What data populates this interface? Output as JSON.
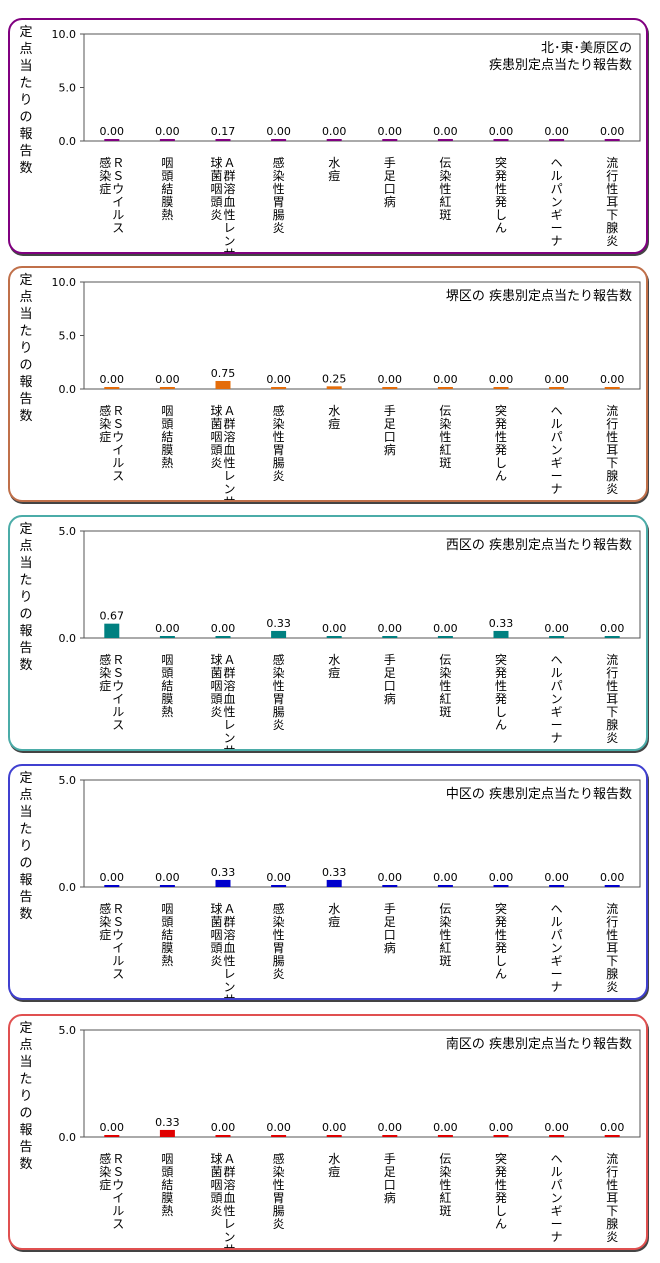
{
  "y_axis_label": "定点当たりの報告数",
  "categories": [
    [
      "Ｒ",
      "Ｓ",
      "ウ",
      "イ",
      "ル",
      "ス",
      "\n",
      "感",
      "染",
      "症"
    ],
    [
      "咽",
      "頭",
      "結",
      "膜",
      "熱"
    ],
    [
      "Ａ",
      "群",
      "溶",
      "血",
      "性",
      "レ",
      "ン",
      "サ",
      "\n",
      "球",
      "菌",
      "咽",
      "頭",
      "炎"
    ],
    [
      "感",
      "染",
      "性",
      "胃",
      "腸",
      "炎"
    ],
    [
      "水",
      "痘"
    ],
    [
      "手",
      "足",
      "口",
      "病"
    ],
    [
      "伝",
      "染",
      "性",
      "紅",
      "斑"
    ],
    [
      "突",
      "発",
      "性",
      "発",
      "し",
      "ん"
    ],
    [
      "ヘ",
      "ル",
      "パ",
      "ン",
      "ギ",
      "ー",
      "ナ"
    ],
    [
      "流",
      "行",
      "性",
      "耳",
      "下",
      "腺",
      "炎"
    ]
  ],
  "chart_data": [
    {
      "type": "bar",
      "title": [
        "北･東･美原区の",
        "疾患別定点当たり報告数"
      ],
      "ylabel": "定点当たりの報告数",
      "ylim": [
        0,
        10
      ],
      "yticks": [
        "0.0",
        "5.0",
        "10.0"
      ],
      "values": [
        0.0,
        0.0,
        0.17,
        0.0,
        0.0,
        0.0,
        0.0,
        0.0,
        0.0,
        0.0
      ],
      "value_labels": [
        "0.00",
        "0.00",
        "0.17",
        "0.00",
        "0.00",
        "0.00",
        "0.00",
        "0.00",
        "0.00",
        "0.00"
      ],
      "bar_color": "#800080",
      "border_color": "#800080"
    },
    {
      "type": "bar",
      "title": [
        "堺区の 疾患別定点当たり報告数"
      ],
      "ylabel": "定点当たりの報告数",
      "ylim": [
        0,
        10
      ],
      "yticks": [
        "0.0",
        "5.0",
        "10.0"
      ],
      "values": [
        0.0,
        0.0,
        0.75,
        0.0,
        0.25,
        0.0,
        0.0,
        0.0,
        0.0,
        0.0
      ],
      "value_labels": [
        "0.00",
        "0.00",
        "0.75",
        "0.00",
        "0.25",
        "0.00",
        "0.00",
        "0.00",
        "0.00",
        "0.00"
      ],
      "bar_color": "#E46C0A",
      "border_color": "#C0704A"
    },
    {
      "type": "bar",
      "title": [
        "西区の 疾患別定点当たり報告数"
      ],
      "ylabel": "定点当たりの報告数",
      "ylim": [
        0,
        5
      ],
      "yticks": [
        "0.0",
        "5.0"
      ],
      "values": [
        0.67,
        0.0,
        0.0,
        0.33,
        0.0,
        0.0,
        0.0,
        0.33,
        0.0,
        0.0
      ],
      "value_labels": [
        "0.67",
        "0.00",
        "0.00",
        "0.33",
        "0.00",
        "0.00",
        "0.00",
        "0.33",
        "0.00",
        "0.00"
      ],
      "bar_color": "#008080",
      "border_color": "#4BACA8"
    },
    {
      "type": "bar",
      "title": [
        "中区の 疾患別定点当たり報告数"
      ],
      "ylabel": "定点当たりの報告数",
      "ylim": [
        0,
        5
      ],
      "yticks": [
        "0.0",
        "5.0"
      ],
      "values": [
        0.0,
        0.0,
        0.33,
        0.0,
        0.33,
        0.0,
        0.0,
        0.0,
        0.0,
        0.0
      ],
      "value_labels": [
        "0.00",
        "0.00",
        "0.33",
        "0.00",
        "0.33",
        "0.00",
        "0.00",
        "0.00",
        "0.00",
        "0.00"
      ],
      "bar_color": "#0000CC",
      "border_color": "#4040D0"
    },
    {
      "type": "bar",
      "title": [
        "南区の 疾患別定点当たり報告数"
      ],
      "ylabel": "定点当たりの報告数",
      "ylim": [
        0,
        5
      ],
      "yticks": [
        "0.0",
        "5.0"
      ],
      "values": [
        0.0,
        0.33,
        0.0,
        0.0,
        0.0,
        0.0,
        0.0,
        0.0,
        0.0,
        0.0
      ],
      "value_labels": [
        "0.00",
        "0.33",
        "0.00",
        "0.00",
        "0.00",
        "0.00",
        "0.00",
        "0.00",
        "0.00",
        "0.00"
      ],
      "bar_color": "#E00000",
      "border_color": "#E05050"
    }
  ]
}
